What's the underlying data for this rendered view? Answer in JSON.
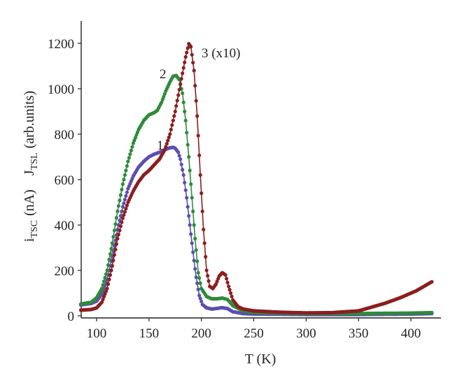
{
  "chart_data": {
    "type": "scatter",
    "title": "",
    "xlabel": "T (K)",
    "ylabel": {
      "part1_main": "i",
      "part1_sub": "TSC",
      "part1_unit": "(nA)",
      "part2_main": "J",
      "part2_sub": "TSL",
      "part2_unit": "(arb.units)"
    },
    "xlim": [
      85,
      425
    ],
    "ylim": [
      0,
      1300
    ],
    "x_ticks": [
      "100",
      "150",
      "200",
      "250",
      "300",
      "350",
      "400"
    ],
    "y_ticks": [
      "0",
      "200",
      "400",
      "600",
      "800",
      "1000",
      "1200"
    ],
    "grid": false,
    "series": [
      {
        "name": "1",
        "color": "#5a4fb0",
        "points": [
          [
            85,
            48
          ],
          [
            95,
            55
          ],
          [
            100,
            65
          ],
          [
            105,
            95
          ],
          [
            110,
            160
          ],
          [
            115,
            260
          ],
          [
            120,
            380
          ],
          [
            125,
            480
          ],
          [
            130,
            560
          ],
          [
            135,
            615
          ],
          [
            140,
            655
          ],
          [
            145,
            680
          ],
          [
            150,
            700
          ],
          [
            155,
            712
          ],
          [
            160,
            720
          ],
          [
            165,
            732
          ],
          [
            170,
            740
          ],
          [
            173,
            742
          ],
          [
            175,
            738
          ],
          [
            178,
            720
          ],
          [
            180,
            690
          ],
          [
            183,
            620
          ],
          [
            186,
            520
          ],
          [
            189,
            400
          ],
          [
            192,
            280
          ],
          [
            195,
            170
          ],
          [
            198,
            90
          ],
          [
            201,
            50
          ],
          [
            205,
            35
          ],
          [
            210,
            30
          ],
          [
            215,
            33
          ],
          [
            220,
            36
          ],
          [
            225,
            32
          ],
          [
            230,
            18
          ],
          [
            240,
            10
          ],
          [
            250,
            8
          ],
          [
            300,
            6
          ],
          [
            350,
            6
          ],
          [
            400,
            8
          ],
          [
            420,
            10
          ]
        ]
      },
      {
        "name": "2",
        "color": "#2e8b3a",
        "points": [
          [
            85,
            52
          ],
          [
            95,
            60
          ],
          [
            100,
            80
          ],
          [
            105,
            120
          ],
          [
            110,
            200
          ],
          [
            115,
            320
          ],
          [
            120,
            460
          ],
          [
            125,
            580
          ],
          [
            130,
            680
          ],
          [
            135,
            760
          ],
          [
            140,
            820
          ],
          [
            145,
            860
          ],
          [
            150,
            885
          ],
          [
            155,
            895
          ],
          [
            158,
            905
          ],
          [
            162,
            940
          ],
          [
            166,
            990
          ],
          [
            170,
            1030
          ],
          [
            173,
            1055
          ],
          [
            176,
            1058
          ],
          [
            179,
            1040
          ],
          [
            182,
            980
          ],
          [
            185,
            860
          ],
          [
            188,
            700
          ],
          [
            191,
            520
          ],
          [
            194,
            340
          ],
          [
            197,
            190
          ],
          [
            200,
            120
          ],
          [
            205,
            85
          ],
          [
            210,
            75
          ],
          [
            215,
            75
          ],
          [
            220,
            78
          ],
          [
            225,
            72
          ],
          [
            230,
            45
          ],
          [
            240,
            22
          ],
          [
            250,
            15
          ],
          [
            300,
            10
          ],
          [
            350,
            10
          ],
          [
            400,
            12
          ],
          [
            420,
            14
          ]
        ]
      },
      {
        "name": "3 (x10)",
        "color": "#8b1f1f",
        "points": [
          [
            85,
            25
          ],
          [
            95,
            28
          ],
          [
            100,
            35
          ],
          [
            105,
            60
          ],
          [
            110,
            120
          ],
          [
            115,
            220
          ],
          [
            120,
            340
          ],
          [
            125,
            430
          ],
          [
            130,
            500
          ],
          [
            135,
            550
          ],
          [
            140,
            590
          ],
          [
            145,
            620
          ],
          [
            150,
            640
          ],
          [
            155,
            665
          ],
          [
            160,
            690
          ],
          [
            165,
            730
          ],
          [
            170,
            800
          ],
          [
            175,
            900
          ],
          [
            180,
            1020
          ],
          [
            185,
            1140
          ],
          [
            188,
            1198
          ],
          [
            190,
            1185
          ],
          [
            193,
            1080
          ],
          [
            196,
            880
          ],
          [
            199,
            620
          ],
          [
            202,
            380
          ],
          [
            205,
            200
          ],
          [
            208,
            130
          ],
          [
            211,
            120
          ],
          [
            214,
            140
          ],
          [
            217,
            175
          ],
          [
            220,
            190
          ],
          [
            223,
            180
          ],
          [
            226,
            130
          ],
          [
            230,
            70
          ],
          [
            235,
            40
          ],
          [
            240,
            30
          ],
          [
            250,
            22
          ],
          [
            275,
            16
          ],
          [
            300,
            13
          ],
          [
            325,
            14
          ],
          [
            350,
            22
          ],
          [
            360,
            35
          ],
          [
            375,
            55
          ],
          [
            390,
            80
          ],
          [
            405,
            110
          ],
          [
            420,
            150
          ]
        ]
      }
    ],
    "curve_labels": [
      {
        "text": "1",
        "series": "1"
      },
      {
        "text": "2",
        "series": "2"
      },
      {
        "text": "3 (x10)",
        "series": "3 (x10)"
      }
    ]
  }
}
